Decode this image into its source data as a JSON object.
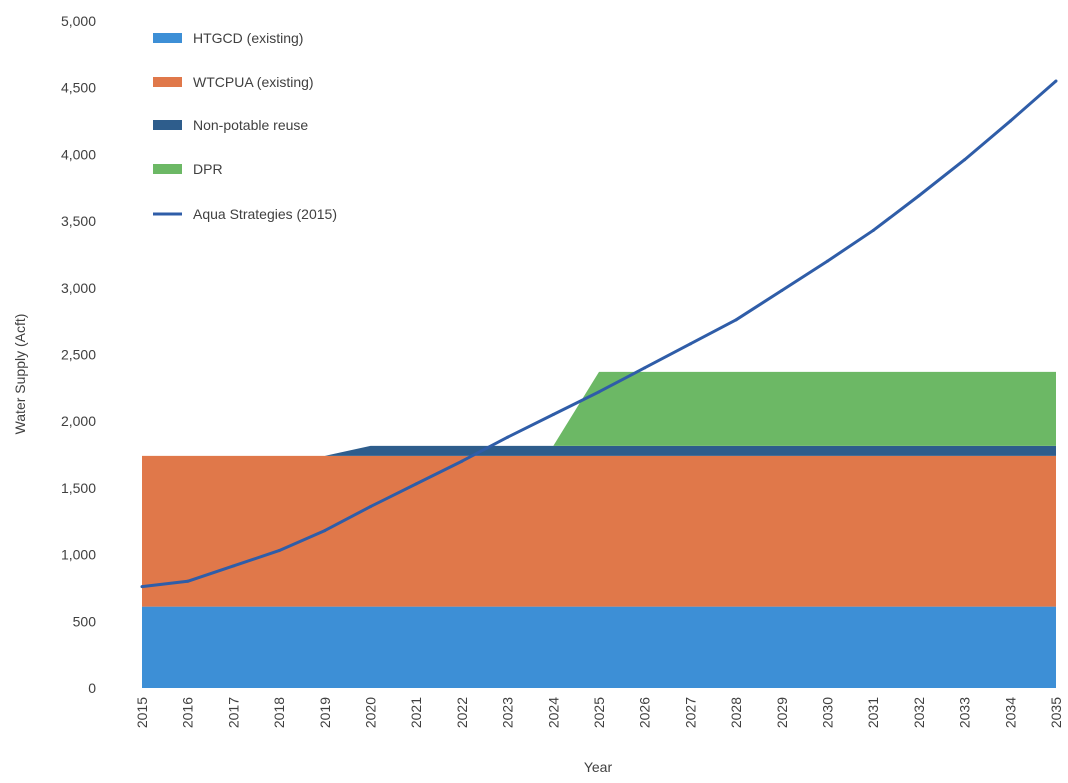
{
  "chart_data": {
    "type": "area",
    "title": "",
    "xlabel": "Year",
    "ylabel": "Water Supply (Acft)",
    "ylim": [
      0,
      5000
    ],
    "yticks": [
      0,
      500,
      1000,
      1500,
      2000,
      2500,
      3000,
      3500,
      4000,
      4500,
      5000
    ],
    "ytick_labels": [
      "0",
      "500",
      "1,000",
      "1,500",
      "2,000",
      "2,500",
      "3,000",
      "3,500",
      "4,000",
      "4,500",
      "5,000"
    ],
    "x": [
      "2015",
      "2016",
      "2017",
      "2018",
      "2019",
      "2020",
      "2021",
      "2022",
      "2023",
      "2024",
      "2025",
      "2026",
      "2027",
      "2028",
      "2029",
      "2030",
      "2031",
      "2032",
      "2033",
      "2034",
      "2035"
    ],
    "grid": false,
    "legend_position": "top-left",
    "series": [
      {
        "name": "HTGCD (existing)",
        "kind": "stacked-area",
        "color": "#3d8fd6",
        "values": [
          610,
          610,
          610,
          610,
          610,
          610,
          610,
          610,
          610,
          610,
          610,
          610,
          610,
          610,
          610,
          610,
          610,
          610,
          610,
          610,
          610
        ]
      },
      {
        "name": "WTCPUA (existing)",
        "kind": "stacked-area",
        "color": "#e0784a",
        "values": [
          1130,
          1130,
          1130,
          1130,
          1130,
          1130,
          1130,
          1130,
          1130,
          1130,
          1130,
          1130,
          1130,
          1130,
          1130,
          1130,
          1130,
          1130,
          1130,
          1130,
          1130
        ]
      },
      {
        "name": "Non-potable reuse",
        "kind": "stacked-area",
        "color": "#2e5d8c",
        "values": [
          0,
          0,
          0,
          0,
          0,
          75,
          75,
          75,
          75,
          75,
          75,
          75,
          75,
          75,
          75,
          75,
          75,
          75,
          75,
          75,
          75
        ]
      },
      {
        "name": "DPR",
        "kind": "stacked-area",
        "color": "#6cb865",
        "values": [
          0,
          0,
          0,
          0,
          0,
          0,
          0,
          0,
          0,
          0,
          555,
          555,
          555,
          555,
          555,
          555,
          555,
          555,
          555,
          555,
          555
        ]
      },
      {
        "name": "Aqua Strategies (2015)",
        "kind": "line",
        "color": "#2f5da8",
        "values": [
          760,
          800,
          915,
          1030,
          1180,
          1360,
          1530,
          1700,
          1880,
          2050,
          2220,
          2400,
          2580,
          2760,
          2980,
          3200,
          3430,
          3690,
          3960,
          4250,
          4550
        ]
      }
    ]
  }
}
